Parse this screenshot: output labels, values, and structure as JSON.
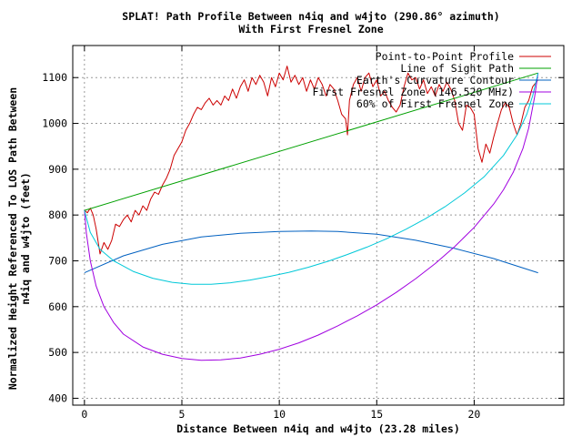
{
  "chart_data": {
    "type": "line",
    "title": "SPLAT! Path Profile Between n4iq and w4jto (290.86° azimuth)",
    "subtitle": "With First Fresnel Zone",
    "xlabel": "Distance Between n4iq and w4jto (23.28 miles)",
    "ylabel_line1": "Normalized Height Referenced To LOS Path Between",
    "ylabel_line2": "n4iq and w4jto (feet)",
    "xlim": [
      -0.6,
      24.6
    ],
    "ylim": [
      385,
      1170
    ],
    "x_ticks": [
      0,
      5,
      10,
      15,
      20
    ],
    "x_tick_labels": [
      "0",
      "5",
      "10",
      "15",
      "20"
    ],
    "y_ticks": [
      400,
      500,
      600,
      700,
      800,
      900,
      1000,
      1100
    ],
    "y_tick_labels": [
      "400",
      "500",
      "600",
      "700",
      "800",
      "900",
      "1000",
      "1100"
    ],
    "grid": true,
    "legend_position": "top-right",
    "series": [
      {
        "name": "Point-to-Point Profile",
        "color": "#cc0000",
        "x": [
          0,
          0.15,
          0.3,
          0.45,
          0.6,
          0.8,
          1.0,
          1.2,
          1.4,
          1.6,
          1.8,
          2.0,
          2.2,
          2.4,
          2.6,
          2.8,
          3.0,
          3.2,
          3.4,
          3.6,
          3.8,
          4.0,
          4.2,
          4.4,
          4.6,
          4.8,
          5.0,
          5.2,
          5.4,
          5.6,
          5.8,
          6.0,
          6.2,
          6.4,
          6.6,
          6.8,
          7.0,
          7.2,
          7.4,
          7.6,
          7.8,
          8.0,
          8.2,
          8.4,
          8.6,
          8.8,
          9.0,
          9.2,
          9.4,
          9.6,
          9.8,
          10.0,
          10.2,
          10.4,
          10.6,
          10.8,
          11.0,
          11.2,
          11.4,
          11.6,
          11.8,
          12.0,
          12.2,
          12.4,
          12.6,
          12.8,
          13.0,
          13.2,
          13.4,
          13.5,
          13.6,
          13.8,
          14.0,
          14.2,
          14.4,
          14.6,
          14.8,
          15.0,
          15.2,
          15.4,
          15.6,
          15.8,
          16.0,
          16.2,
          16.4,
          16.6,
          16.8,
          17.0,
          17.2,
          17.4,
          17.6,
          17.8,
          18.0,
          18.2,
          18.4,
          18.6,
          18.8,
          19.0,
          19.2,
          19.4,
          19.6,
          19.8,
          20.0,
          20.2,
          20.4,
          20.6,
          20.8,
          21.0,
          21.2,
          21.4,
          21.6,
          21.8,
          22.0,
          22.2,
          22.4,
          22.6,
          22.8,
          23.0,
          23.28
        ],
        "y": [
          810,
          805,
          815,
          800,
          770,
          715,
          740,
          725,
          745,
          780,
          775,
          790,
          800,
          785,
          810,
          800,
          820,
          810,
          835,
          850,
          845,
          865,
          880,
          900,
          930,
          945,
          960,
          985,
          1000,
          1020,
          1035,
          1030,
          1045,
          1055,
          1040,
          1050,
          1040,
          1060,
          1050,
          1075,
          1055,
          1080,
          1095,
          1070,
          1100,
          1085,
          1105,
          1090,
          1060,
          1100,
          1080,
          1110,
          1095,
          1125,
          1090,
          1105,
          1085,
          1100,
          1070,
          1095,
          1075,
          1100,
          1085,
          1060,
          1085,
          1075,
          1050,
          1020,
          1010,
          975,
          1050,
          1085,
          1100,
          1070,
          1100,
          1110,
          1080,
          1095,
          1060,
          1070,
          1050,
          1035,
          1025,
          1040,
          1080,
          1110,
          1095,
          1100,
          1075,
          1095,
          1065,
          1080,
          1060,
          1085,
          1070,
          1090,
          1075,
          1050,
          1000,
          985,
          1040,
          1035,
          1020,
          945,
          915,
          955,
          935,
          970,
          1000,
          1030,
          1045,
          1035,
          1000,
          975,
          1000,
          1035,
          1050,
          1080,
          1095
        ]
      },
      {
        "name": "Line of Sight Path",
        "color": "#00a000",
        "x": [
          0,
          23.28
        ],
        "y": [
          810,
          1110
        ]
      },
      {
        "name": "Earth's Curvature Contour",
        "color": "#0060c0",
        "x": [
          0,
          2,
          4,
          6,
          8,
          10,
          11.64,
          13,
          15,
          17,
          19,
          21,
          23.28
        ],
        "y": [
          674,
          711,
          736,
          752,
          760,
          764,
          765,
          764,
          758,
          745,
          727,
          705,
          674
        ]
      },
      {
        "name": "First Fresnel Zone (146.520 MHz)",
        "color": "#a000e0",
        "x": [
          0,
          0.1,
          0.3,
          0.6,
          1,
          1.5,
          2,
          3,
          4,
          5,
          6,
          7,
          8,
          9,
          10,
          11,
          12,
          13,
          14,
          15,
          16,
          17,
          18,
          19,
          20,
          21,
          21.5,
          22,
          22.5,
          22.8,
          23.1,
          23.28
        ],
        "y": [
          810,
          760,
          700,
          645,
          600,
          565,
          540,
          512,
          496,
          487,
          483,
          484,
          488,
          496,
          507,
          521,
          538,
          558,
          580,
          604,
          631,
          661,
          694,
          731,
          773,
          824,
          855,
          893,
          945,
          990,
          1058,
          1110
        ]
      },
      {
        "name": "60% of First Fresnel Zone",
        "color": "#00c8d8",
        "x": [
          0,
          0.3,
          0.8,
          1.5,
          2.5,
          3.5,
          4.5,
          5.5,
          6.5,
          7.5,
          8.5,
          9.5,
          10.5,
          11.5,
          12.5,
          13.5,
          14.5,
          15.5,
          16.5,
          17.5,
          18.5,
          19.5,
          20.5,
          21.5,
          22.2,
          22.7,
          23.0,
          23.28
        ],
        "y": [
          810,
          762,
          725,
          700,
          677,
          662,
          653,
          649,
          649,
          652,
          658,
          666,
          675,
          686,
          699,
          714,
          730,
          748,
          769,
          792,
          818,
          848,
          883,
          930,
          975,
          1020,
          1060,
          1110
        ]
      }
    ]
  }
}
